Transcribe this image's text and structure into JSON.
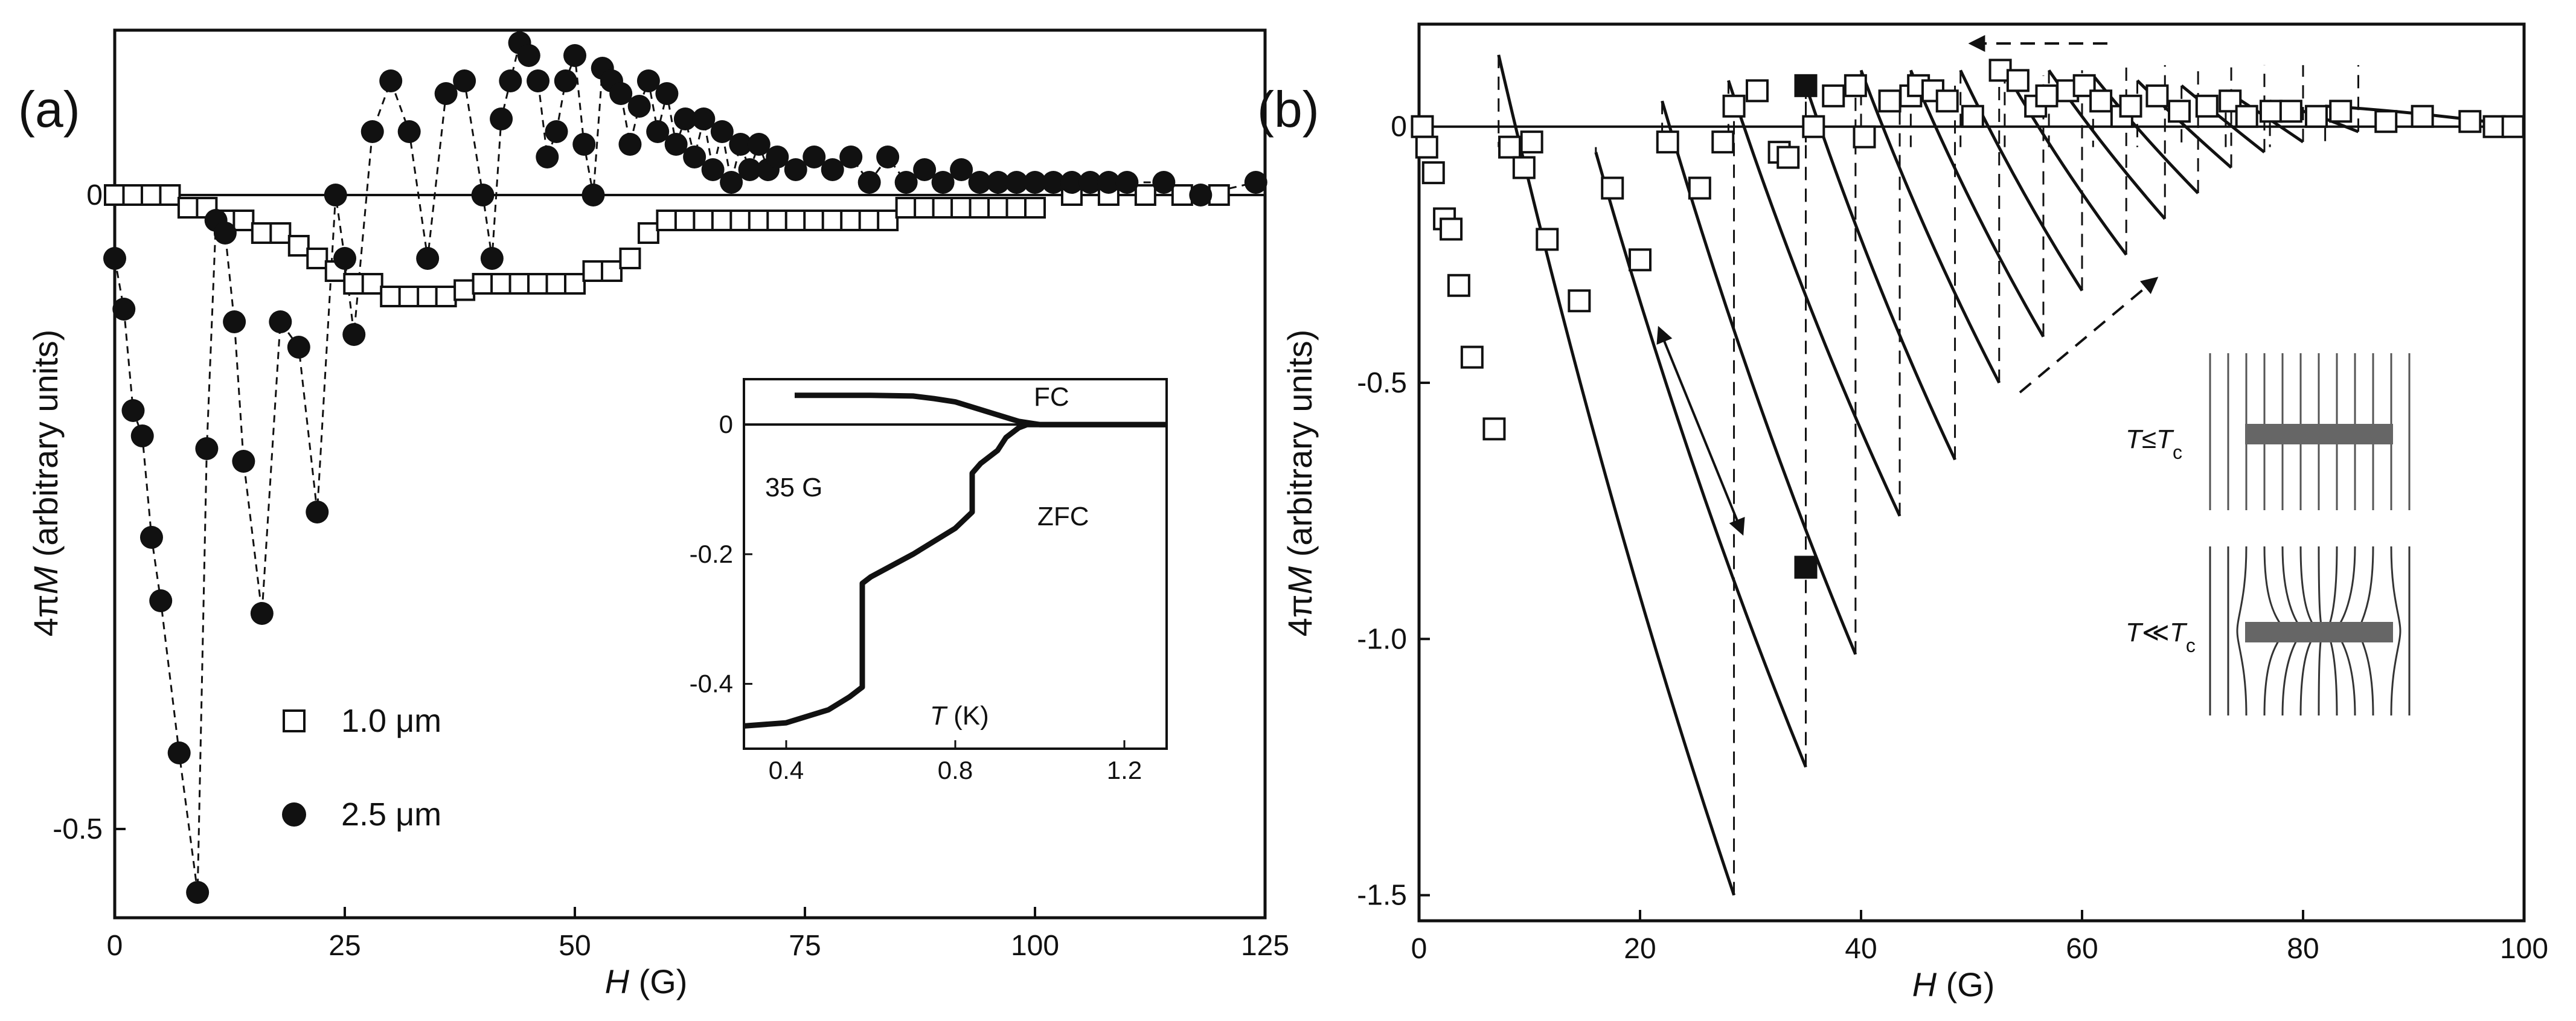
{
  "chart_data": [
    {
      "panel": "(a)",
      "type": "scatter",
      "xlabel_italic": "H",
      "xlabel_unit": " (G)",
      "ylabel_prefix": "4π",
      "ylabel_italic": "M",
      "ylabel_unit": " (arbitrary units)",
      "xlim": [
        0,
        125
      ],
      "ylim": [
        -0.57,
        0.13
      ],
      "xticks": [
        0,
        25,
        50,
        75,
        100,
        125
      ],
      "yticks": [
        0,
        -0.5
      ],
      "xtick_labels": [
        "0",
        "25",
        "50",
        "75",
        "100",
        "125"
      ],
      "ytick_labels": [
        "0",
        "-0.5"
      ],
      "series": [
        {
          "name": "1.0 μm",
          "marker": "open-square",
          "legend_label": "1.0 μm",
          "x": [
            0,
            2,
            4,
            6,
            8,
            10,
            12,
            14,
            16,
            18,
            20,
            22,
            24,
            26,
            28,
            30,
            32,
            34,
            36,
            38,
            40,
            42,
            44,
            46,
            48,
            50,
            52,
            54,
            56,
            58,
            60,
            62,
            64,
            66,
            68,
            70,
            72,
            74,
            76,
            78,
            80,
            82,
            84,
            86,
            88,
            90,
            92,
            94,
            96,
            98,
            100,
            104,
            108,
            112,
            116,
            120
          ],
          "y": [
            0,
            0,
            0,
            0,
            -0.01,
            -0.01,
            -0.02,
            -0.02,
            -0.03,
            -0.03,
            -0.04,
            -0.05,
            -0.06,
            -0.07,
            -0.07,
            -0.08,
            -0.08,
            -0.08,
            -0.08,
            -0.075,
            -0.07,
            -0.07,
            -0.07,
            -0.07,
            -0.07,
            -0.07,
            -0.06,
            -0.06,
            -0.05,
            -0.03,
            -0.02,
            -0.02,
            -0.02,
            -0.02,
            -0.02,
            -0.02,
            -0.02,
            -0.02,
            -0.02,
            -0.02,
            -0.02,
            -0.02,
            -0.02,
            -0.01,
            -0.01,
            -0.01,
            -0.01,
            -0.01,
            -0.01,
            -0.01,
            -0.01,
            0,
            0,
            0,
            0,
            0
          ]
        },
        {
          "name": "2.5 μm",
          "marker": "filled-circle",
          "legend_label": "2.5 μm",
          "x": [
            0,
            1,
            2,
            3,
            4,
            5,
            7,
            9,
            10,
            11,
            12,
            13,
            14,
            16,
            18,
            20,
            22,
            24,
            25,
            26,
            28,
            30,
            32,
            34,
            36,
            38,
            40,
            41,
            42,
            43,
            44,
            45,
            46,
            47,
            48,
            49,
            50,
            51,
            52,
            53,
            54,
            55,
            56,
            57,
            58,
            59,
            60,
            61,
            62,
            63,
            64,
            65,
            66,
            67,
            68,
            69,
            70,
            71,
            72,
            74,
            76,
            78,
            80,
            82,
            84,
            86,
            88,
            90,
            92,
            94,
            96,
            98,
            100,
            102,
            104,
            106,
            108,
            110,
            114,
            118,
            124
          ],
          "y": [
            -0.05,
            -0.09,
            -0.17,
            -0.19,
            -0.27,
            -0.32,
            -0.44,
            -0.55,
            -0.2,
            -0.02,
            -0.03,
            -0.1,
            -0.21,
            -0.33,
            -0.1,
            -0.12,
            -0.25,
            0.0,
            -0.05,
            -0.11,
            0.05,
            0.09,
            0.05,
            -0.05,
            0.08,
            0.09,
            0.0,
            -0.05,
            0.06,
            0.09,
            0.12,
            0.11,
            0.09,
            0.03,
            0.05,
            0.09,
            0.11,
            0.04,
            0.0,
            0.1,
            0.09,
            0.08,
            0.04,
            0.07,
            0.09,
            0.05,
            0.08,
            0.04,
            0.06,
            0.03,
            0.06,
            0.02,
            0.05,
            0.01,
            0.04,
            0.02,
            0.04,
            0.02,
            0.03,
            0.02,
            0.03,
            0.02,
            0.03,
            0.01,
            0.03,
            0.01,
            0.02,
            0.01,
            0.02,
            0.01,
            0.01,
            0.01,
            0.01,
            0.01,
            0.01,
            0.01,
            0.01,
            0.01,
            0.01,
            0.0,
            0.01
          ]
        }
      ],
      "inset": {
        "xlim": [
          0.3,
          1.3
        ],
        "ylim": [
          -0.5,
          0.07
        ],
        "xticks": [
          0.4,
          0.8,
          1.2
        ],
        "yticks": [
          0,
          -0.2,
          -0.4
        ],
        "xtick_labels": [
          "0.4",
          "0.8",
          "1.2"
        ],
        "ytick_labels": [
          "0",
          "-0.2",
          "-0.4"
        ],
        "xlabel_italic": "T",
        "xlabel_unit": " (K)",
        "annotations": [
          "FC",
          "ZFC",
          "35 G"
        ],
        "fc": {
          "x": [
            0.42,
            0.5,
            0.6,
            0.7,
            0.75,
            0.8,
            0.85,
            0.9,
            0.95,
            1.0,
            1.05,
            1.1,
            1.2,
            1.3
          ],
          "y": [
            0.045,
            0.045,
            0.045,
            0.044,
            0.04,
            0.035,
            0.025,
            0.015,
            0.005,
            0.0,
            0.0,
            0.0,
            0.0,
            0.0
          ]
        },
        "zfc": {
          "x": [
            0.3,
            0.4,
            0.5,
            0.55,
            0.58,
            0.58,
            0.6,
            0.7,
            0.8,
            0.84,
            0.84,
            0.86,
            0.88,
            0.9,
            0.92,
            0.95,
            0.97,
            1.0,
            1.1,
            1.3
          ],
          "y": [
            -0.465,
            -0.46,
            -0.44,
            -0.42,
            -0.405,
            -0.245,
            -0.235,
            -0.2,
            -0.16,
            -0.135,
            -0.075,
            -0.06,
            -0.05,
            -0.04,
            -0.02,
            -0.005,
            0.0,
            0.0,
            0.0,
            0.0
          ]
        }
      }
    },
    {
      "panel": "(b)",
      "type": "line",
      "xlabel_italic": "H",
      "xlabel_unit": " (G)",
      "ylabel_prefix": "4π",
      "ylabel_italic": "M",
      "ylabel_unit": " (arbitrary units)",
      "xlim": [
        0,
        100
      ],
      "ylim": [
        -1.55,
        0.2
      ],
      "xticks": [
        0,
        20,
        40,
        60,
        80,
        100
      ],
      "yticks": [
        0,
        -0.5,
        -1.0,
        -1.5
      ],
      "xtick_labels": [
        "0",
        "20",
        "40",
        "60",
        "80",
        "100"
      ],
      "ytick_labels": [
        "0",
        "-0.5",
        "-1.0",
        "-1.5"
      ],
      "branches": [
        {
          "x0": 7.2,
          "y0": 0.14,
          "x1": 28.5,
          "y1": -1.5
        },
        {
          "x0": 16,
          "y0": -0.05,
          "x1": 35,
          "y1": -1.25
        },
        {
          "x0": 22,
          "y0": 0.05,
          "x1": 39.5,
          "y1": -1.03
        },
        {
          "x0": 28,
          "y0": 0.09,
          "x1": 43.5,
          "y1": -0.76
        },
        {
          "x0": 35,
          "y0": 0.08,
          "x1": 48.5,
          "y1": -0.65
        },
        {
          "x0": 40,
          "y0": 0.11,
          "x1": 52.5,
          "y1": -0.5
        },
        {
          "x0": 44.5,
          "y0": 0.11,
          "x1": 56.5,
          "y1": -0.41
        },
        {
          "x0": 49,
          "y0": 0.11,
          "x1": 60,
          "y1": -0.32
        },
        {
          "x0": 53,
          "y0": 0.11,
          "x1": 64,
          "y1": -0.25
        },
        {
          "x0": 57,
          "y0": 0.11,
          "x1": 67.5,
          "y1": -0.18
        },
        {
          "x0": 61,
          "y0": 0.1,
          "x1": 70.5,
          "y1": -0.13
        },
        {
          "x0": 65,
          "y0": 0.09,
          "x1": 73.5,
          "y1": -0.08
        },
        {
          "x0": 69,
          "y0": 0.08,
          "x1": 76.5,
          "y1": -0.05
        },
        {
          "x0": 73,
          "y0": 0.07,
          "x1": 80,
          "y1": -0.03
        },
        {
          "x0": 77,
          "y0": 0.05,
          "x1": 85,
          "y1": -0.01
        },
        {
          "x0": 82,
          "y0": 0.04,
          "x1": 100,
          "y1": 0.0
        }
      ],
      "open_squares": {
        "x": [
          0.3,
          0.7,
          1.3,
          2.3,
          2.9,
          3.6,
          4.8,
          6.8,
          8.2,
          9.5,
          10.2,
          11.6,
          14.5,
          17.5,
          20,
          22.5,
          25.4,
          27.5,
          28.5,
          30.6,
          32.6,
          33.4,
          35.7,
          37.5,
          39.5,
          40.3,
          42.6,
          44.5,
          45.2,
          46.5,
          47.8,
          50.1,
          52.6,
          54.2,
          55.8,
          56.8,
          58.7,
          60.2,
          61.7,
          63.6,
          64.4,
          66.8,
          68.8,
          71.3,
          73.4,
          74.9,
          77.1,
          78.9,
          81.2,
          83.4,
          87.5,
          90.8,
          95.1,
          97.3,
          99
        ],
        "y": [
          0,
          -0.04,
          -0.09,
          -0.18,
          -0.2,
          -0.31,
          -0.45,
          -0.59,
          -0.04,
          -0.08,
          -0.03,
          -0.22,
          -0.34,
          -0.12,
          -0.26,
          -0.03,
          -0.12,
          -0.03,
          0.04,
          0.07,
          -0.05,
          -0.06,
          0.0,
          0.06,
          0.08,
          -0.02,
          0.05,
          0.06,
          0.08,
          0.07,
          0.05,
          0.02,
          0.11,
          0.09,
          0.04,
          0.06,
          0.07,
          0.08,
          0.05,
          0.02,
          0.04,
          0.06,
          0.03,
          0.04,
          0.05,
          0.02,
          0.03,
          0.03,
          0.02,
          0.03,
          0.01,
          0.02,
          0.01,
          0.0,
          0.0
        ]
      },
      "filled_squares": {
        "x": [
          35,
          35
        ],
        "y": [
          0.08,
          -0.86
        ]
      },
      "inset": {
        "label_top_italic": "T",
        "label_top_rel": "≤",
        "label_top_sub": "c",
        "label_bottom_italic": "T",
        "label_bottom_rel": "≪",
        "label_bottom_sub": "c"
      }
    }
  ]
}
